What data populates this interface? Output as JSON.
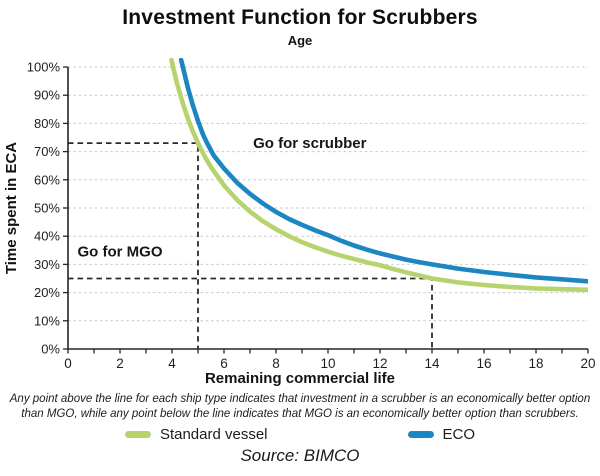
{
  "header": {
    "title": "Investment Function for Scrubbers",
    "subtitle": "Age"
  },
  "chart_data": {
    "type": "line",
    "title": "Investment Function for Scrubbers",
    "subtitle": "Age",
    "xlabel": "Remaining commercial life",
    "ylabel": "Time spent in ECA",
    "x_axis": {
      "min": 0,
      "max": 20,
      "label_step": 2,
      "tick_step": 1
    },
    "y_axis": {
      "min": 0,
      "max": 100,
      "tick_step": 10,
      "suffix": "%"
    },
    "grid": true,
    "legend_position": "bottom",
    "series": [
      {
        "name": "Standard vessel",
        "color": "#b6d36e",
        "points": [
          [
            3.98,
            102.5
          ],
          [
            4.04,
            100
          ],
          [
            4.2,
            94
          ],
          [
            4.4,
            87.6
          ],
          [
            4.6,
            82
          ],
          [
            4.8,
            77.2
          ],
          [
            5,
            73
          ],
          [
            5.25,
            68.4
          ],
          [
            5.5,
            64.5
          ],
          [
            6,
            58
          ],
          [
            6.5,
            52.9
          ],
          [
            7,
            48.7
          ],
          [
            7.5,
            45.3
          ],
          [
            8,
            42.5
          ],
          [
            8.5,
            40
          ],
          [
            9,
            37.9
          ],
          [
            9.5,
            36.1
          ],
          [
            10,
            34.5
          ],
          [
            10.5,
            33.1
          ],
          [
            11,
            31.9
          ],
          [
            11.5,
            30.7
          ],
          [
            12,
            29.7
          ],
          [
            12.5,
            28.4
          ],
          [
            13,
            27.2
          ],
          [
            13.5,
            26.1
          ],
          [
            14,
            25
          ],
          [
            15,
            23.6
          ],
          [
            16,
            22.7
          ],
          [
            17,
            22
          ],
          [
            18,
            21.5
          ],
          [
            19,
            21.2
          ],
          [
            20,
            21
          ]
        ]
      },
      {
        "name": "ECO",
        "color": "#1b86c2",
        "points": [
          [
            4.35,
            102.5
          ],
          [
            4.42,
            100
          ],
          [
            4.6,
            93
          ],
          [
            4.8,
            86.5
          ],
          [
            5,
            80.8
          ],
          [
            5.2,
            75.9
          ],
          [
            5.35,
            73
          ],
          [
            5.6,
            68.7
          ],
          [
            6,
            64
          ],
          [
            6.5,
            59
          ],
          [
            7,
            55
          ],
          [
            7.5,
            51.6
          ],
          [
            8,
            48.6
          ],
          [
            8.5,
            46.1
          ],
          [
            9,
            44
          ],
          [
            9.5,
            42.1
          ],
          [
            10,
            40.4
          ],
          [
            10.5,
            38.4
          ],
          [
            11,
            36.7
          ],
          [
            11.5,
            35.2
          ],
          [
            12,
            33.9
          ],
          [
            12.5,
            32.8
          ],
          [
            13,
            31.7
          ],
          [
            13.5,
            30.8
          ],
          [
            14,
            30
          ],
          [
            15,
            28.5
          ],
          [
            16,
            27.3
          ],
          [
            17,
            26.3
          ],
          [
            18,
            25.4
          ],
          [
            19,
            24.7
          ],
          [
            20,
            24
          ]
        ]
      }
    ],
    "callouts": [
      {
        "x": 5,
        "y": 73
      },
      {
        "x": 14,
        "y": 25
      }
    ],
    "region_labels": [
      {
        "text": "Go for scrubber",
        "x": 9.3,
        "y": 73
      },
      {
        "text": "Go for MGO",
        "x": 2.0,
        "y": 34.5
      }
    ],
    "colors": {
      "grid": "#c9c9c9",
      "axis": "#262626",
      "callout": "#2b2b2b",
      "tick_text": "#1f1f1f",
      "region_text": "#161616"
    }
  },
  "footnote": {
    "line1": "Any point above the line for each ship type indicates that investment in a scrubber is an economically better option",
    "line2": "than MGO, while any point below the line indicates that MGO is an economically better option than scrubbers."
  },
  "legend": {
    "items": [
      {
        "label": "Standard vessel",
        "color": "#b6d36e"
      },
      {
        "label": "ECO",
        "color": "#1b86c2"
      }
    ]
  },
  "source": {
    "text": "Source: BIMCO"
  }
}
